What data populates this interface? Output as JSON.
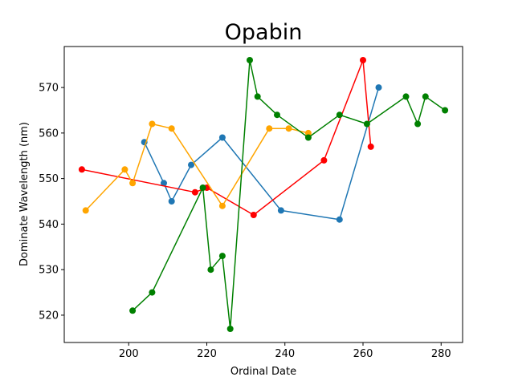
{
  "chart_data": {
    "type": "line",
    "title": "Opabin",
    "xlabel": "Ordinal Date",
    "ylabel": "Dominate Wavelength (nm)",
    "xlim": [
      183.5,
      285.5
    ],
    "ylim": [
      514.0,
      579.0
    ],
    "x_ticks": [
      200,
      220,
      240,
      260,
      280
    ],
    "y_ticks": [
      520,
      530,
      540,
      550,
      560,
      570
    ],
    "grid": false,
    "series": [
      {
        "color": "#1f77b4",
        "points": [
          [
            204,
            558
          ],
          [
            209,
            549
          ],
          [
            211,
            545
          ],
          [
            216,
            553
          ],
          [
            224,
            559
          ],
          [
            239,
            543
          ],
          [
            254,
            541
          ],
          [
            264,
            570
          ]
        ]
      },
      {
        "color": "#ff0000",
        "points": [
          [
            188,
            552
          ],
          [
            217,
            547
          ],
          [
            220,
            548
          ],
          [
            232,
            542
          ],
          [
            250,
            554
          ],
          [
            260,
            576
          ],
          [
            262,
            557
          ]
        ]
      },
      {
        "color": "#ffa500",
        "points": [
          [
            189,
            543
          ],
          [
            199,
            552
          ],
          [
            201,
            549
          ],
          [
            206,
            562
          ],
          [
            211,
            561
          ],
          [
            224,
            544
          ],
          [
            236,
            561
          ],
          [
            241,
            561
          ],
          [
            246,
            560
          ]
        ]
      },
      {
        "color": "#008000",
        "points": [
          [
            201,
            521
          ],
          [
            206,
            525
          ],
          [
            219,
            548
          ],
          [
            221,
            530
          ],
          [
            224,
            533
          ],
          [
            226,
            517
          ],
          [
            231,
            576
          ],
          [
            233,
            568
          ],
          [
            238,
            564
          ],
          [
            246,
            559
          ],
          [
            254,
            564
          ],
          [
            261,
            562
          ],
          [
            271,
            568
          ],
          [
            274,
            562
          ],
          [
            276,
            568
          ],
          [
            281,
            565
          ]
        ]
      }
    ]
  }
}
